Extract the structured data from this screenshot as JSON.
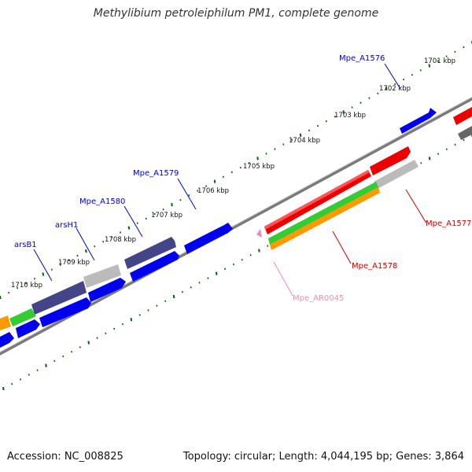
{
  "title": "Methylibium petroleiphilum PM1, complete genome",
  "footer": {
    "accession": "Accession: NC_008825",
    "topology": "Topology: circular; Length: 4,044,195 bp; Genes: 3,864"
  },
  "ticks": [
    "1701 kbp",
    "1702 kbp",
    "1703 kbp",
    "1704 kbp",
    "1705 kbp",
    "1706 kbp",
    "1707 kbp",
    "1708 kbp",
    "1709 kbp",
    "1710 kbp"
  ],
  "gene_labels": [
    {
      "text": "Mpe_A1576",
      "color": "#0000cc"
    },
    {
      "text": "Mpe_A1579",
      "color": "#0000cc"
    },
    {
      "text": "Mpe_A1580",
      "color": "#0000cc"
    },
    {
      "text": "arsH1",
      "color": "#0000cc"
    },
    {
      "text": "arsB1",
      "color": "#0000cc"
    },
    {
      "text": "Mpe_A1577",
      "color": "#cc0000"
    },
    {
      "text": "Mpe_A1578",
      "color": "#cc0000"
    },
    {
      "text": "Mpe_AR0045",
      "color": "#ee88bb"
    }
  ],
  "colors": {
    "cds_forward": "#0000ee",
    "cds_red": "#ee0000",
    "cds_dark": "#444488",
    "cds_gray": "#bbbbbb",
    "rrna_green": "#33cc33",
    "rrna_orange": "#ff9900",
    "trna_pink": "#ee88bb",
    "backbone": "#888888",
    "tick": "#006600"
  }
}
